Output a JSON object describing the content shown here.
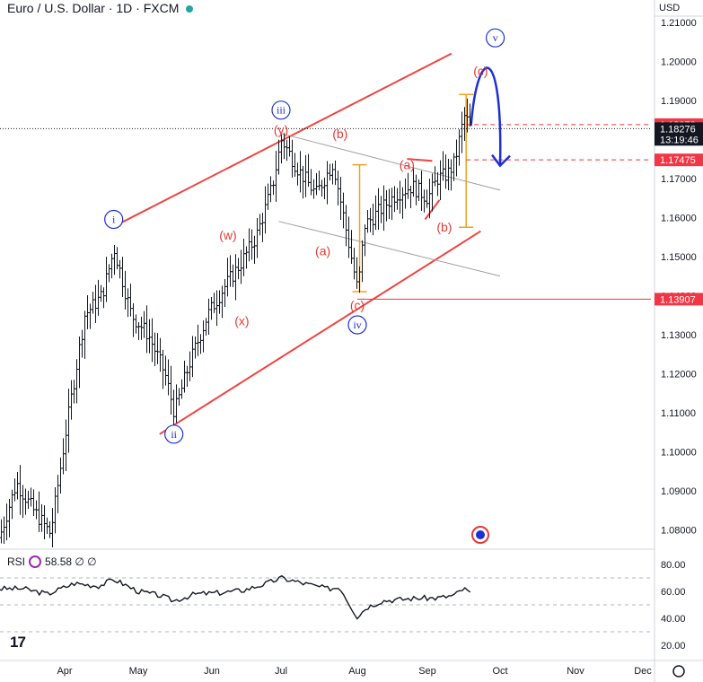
{
  "header": {
    "title": "Euro / U.S. Dollar · 1D · FXCM",
    "currency": "USD"
  },
  "rsi": {
    "label": "RSI",
    "value": "58.58",
    "extra": "∅ ∅",
    "levels": [
      "80.00",
      "60.00",
      "40.00",
      "20.00"
    ]
  },
  "logo": "17",
  "colors": {
    "price": "#131722",
    "channel": "#ef4444",
    "wave_red": "#e53935",
    "wave_blue": "#1e2fd6",
    "projection": "#1e2fd6",
    "range_box": "#f0a020",
    "minor_channel": "#9e9e9e",
    "rsi_line": "#131722"
  },
  "chart_data": {
    "type": "ohlc",
    "instrument": "EUR/USD",
    "timeframe": "1D",
    "y_ticks": [
      1.21,
      1.2,
      1.19,
      1.18,
      1.17,
      1.16,
      1.15,
      1.14,
      1.13,
      1.12,
      1.11,
      1.1,
      1.09,
      1.08
    ],
    "y_tick_labels": [
      "1.21000",
      "1.20000",
      "1.19000",
      "1.18000",
      "1.17000",
      "1.16000",
      "1.15000",
      "1.14000",
      "1.13000",
      "1.12000",
      "1.11000",
      "1.10000",
      "1.09000",
      "1.08000"
    ],
    "x_ticks": [
      "Apr",
      "May",
      "Jun",
      "Jul",
      "Aug",
      "Sep",
      "Oct",
      "Nov",
      "Dec"
    ],
    "ylim": [
      1.0755,
      1.2157
    ],
    "price_path": [
      [
        "03-05",
        1.078
      ],
      [
        "03-12",
        1.092
      ],
      [
        "03-19",
        1.085
      ],
      [
        "03-26",
        1.079
      ],
      [
        "04-02",
        1.108
      ],
      [
        "04-09",
        1.135
      ],
      [
        "04-16",
        1.14
      ],
      [
        "04-21",
        1.152
      ],
      [
        "04-28",
        1.135
      ],
      [
        "05-05",
        1.13
      ],
      [
        "05-12",
        1.12
      ],
      [
        "05-16",
        1.11
      ],
      [
        "05-22",
        1.122
      ],
      [
        "05-30",
        1.135
      ],
      [
        "06-06",
        1.142
      ],
      [
        "06-13",
        1.148
      ],
      [
        "06-20",
        1.155
      ],
      [
        "06-27",
        1.168
      ],
      [
        "07-01",
        1.18
      ],
      [
        "07-08",
        1.172
      ],
      [
        "07-15",
        1.166
      ],
      [
        "07-22",
        1.174
      ],
      [
        "07-29",
        1.151
      ],
      [
        "08-01",
        1.141
      ],
      [
        "08-04",
        1.158
      ],
      [
        "08-11",
        1.162
      ],
      [
        "08-18",
        1.166
      ],
      [
        "08-25",
        1.168
      ],
      [
        "09-01",
        1.165
      ],
      [
        "09-05",
        1.17
      ],
      [
        "09-09",
        1.171
      ],
      [
        "09-12",
        1.174
      ],
      [
        "09-16",
        1.186
      ],
      [
        "09-19",
        1.183
      ]
    ],
    "price_lines": [
      {
        "price": 1.18378,
        "label": "1.18378",
        "style": "dashed",
        "color": "#e53935"
      },
      {
        "price": 1.18276,
        "label": "1.18276",
        "sub": "13:19:46",
        "style": "dotted",
        "color": "#131722"
      },
      {
        "price": 1.17475,
        "label": "1.17475",
        "style": "dashed",
        "color": "#e53935"
      },
      {
        "price": 1.13907,
        "label": "1.13907",
        "style": "solid",
        "color": "#e53935"
      }
    ],
    "waves_circled": [
      {
        "label": "i",
        "date": "04-21",
        "price": 1.1595
      },
      {
        "label": "ii",
        "date": "05-16",
        "price": 1.1045
      },
      {
        "label": "iii",
        "date": "07-01",
        "price": 1.1875
      },
      {
        "label": "iv",
        "date": "08-01",
        "price": 1.1325
      },
      {
        "label": "v",
        "date": "09-29",
        "price": 1.206
      }
    ],
    "waves_red": [
      {
        "label": "(w)",
        "date": "06-08",
        "price": 1.1555
      },
      {
        "label": "(x)",
        "date": "06-14",
        "price": 1.1335
      },
      {
        "label": "(y)",
        "date": "07-01",
        "price": 1.1825
      },
      {
        "label": "(a)",
        "date": "07-18",
        "price": 1.1515
      },
      {
        "label": "(b)",
        "date": "07-25",
        "price": 1.1815
      },
      {
        "label": "(c)",
        "date": "08-01",
        "price": 1.1375
      },
      {
        "label": "(a)",
        "date": "08-23",
        "price": 1.1735
      },
      {
        "label": "(b)",
        "date": "09-08",
        "price": 1.1575
      },
      {
        "label": "(c)",
        "date": "09-23",
        "price": 1.1975
      }
    ],
    "trendlines": [
      {
        "from": [
          "04-22",
          1.158
        ],
        "to": [
          "09-11",
          1.202
        ],
        "color": "#ef4444"
      },
      {
        "from": [
          "05-10",
          1.1045
        ],
        "to": [
          "09-23",
          1.1565
        ],
        "color": "#ef4444"
      },
      {
        "from": [
          "07-01",
          1.1815
        ],
        "to": [
          "10-01",
          1.167
        ],
        "color": "#9e9e9e"
      },
      {
        "from": [
          "06-30",
          1.159
        ],
        "to": [
          "10-01",
          1.145
        ],
        "color": "#9e9e9e"
      },
      {
        "from": [
          "08-23",
          1.175
        ],
        "to": [
          "09-03",
          1.1745
        ],
        "color": "#ef4444"
      },
      {
        "from": [
          "08-31",
          1.1595
        ],
        "to": [
          "09-06",
          1.1645
        ],
        "color": "#ef4444"
      }
    ],
    "ranges": [
      {
        "date": "08-02",
        "from": 1.141,
        "to": 1.1735
      },
      {
        "date": "09-17",
        "from": 1.1575,
        "to": 1.1915
      }
    ],
    "projection": [
      [
        "09-19",
        1.1835
      ],
      [
        "09-24",
        1.1955
      ],
      [
        "09-28",
        1.185
      ],
      [
        "10-01",
        1.1735
      ]
    ],
    "rsi": {
      "ylim": [
        10,
        90
      ],
      "series": [
        [
          "03-05",
          62
        ],
        [
          "03-15",
          62
        ],
        [
          "03-25",
          58
        ],
        [
          "04-05",
          66
        ],
        [
          "04-15",
          64
        ],
        [
          "04-21",
          69
        ],
        [
          "05-01",
          60
        ],
        [
          "05-10",
          57
        ],
        [
          "05-16",
          53
        ],
        [
          "05-25",
          58
        ],
        [
          "06-05",
          59
        ],
        [
          "06-15",
          61
        ],
        [
          "06-25",
          66
        ],
        [
          "07-01",
          70
        ],
        [
          "07-10",
          66
        ],
        [
          "07-20",
          62
        ],
        [
          "07-25",
          63
        ],
        [
          "07-29",
          50
        ],
        [
          "08-01",
          41
        ],
        [
          "08-05",
          48
        ],
        [
          "08-12",
          53
        ],
        [
          "08-20",
          54
        ],
        [
          "08-28",
          55
        ],
        [
          "09-05",
          55
        ],
        [
          "09-12",
          57
        ],
        [
          "09-16",
          62
        ],
        [
          "09-19",
          58.58
        ]
      ]
    }
  }
}
